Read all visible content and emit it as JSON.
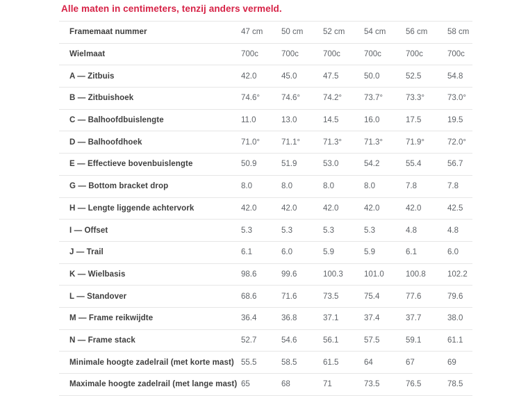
{
  "title": "Alle maten in centimeters, tenzij anders vermeld.",
  "colors": {
    "title_red": "#d62246",
    "label_text": "#3e3e3e",
    "value_text": "#5f6368",
    "row_border": "#e6e6e6"
  },
  "table": {
    "rows": [
      {
        "label": "Framemaat nummer",
        "values": [
          "47 cm",
          "50 cm",
          "52 cm",
          "54 cm",
          "56 cm",
          "58 cm"
        ]
      },
      {
        "label": "Wielmaat",
        "values": [
          "700c",
          "700c",
          "700c",
          "700c",
          "700c",
          "700c"
        ]
      },
      {
        "label": "A — Zitbuis",
        "values": [
          "42.0",
          "45.0",
          "47.5",
          "50.0",
          "52.5",
          "54.8"
        ]
      },
      {
        "label": "B — Zitbuishoek",
        "values": [
          "74.6°",
          "74.6°",
          "74.2°",
          "73.7°",
          "73.3°",
          "73.0°"
        ]
      },
      {
        "label": "C — Balhoofdbuislengte",
        "values": [
          "11.0",
          "13.0",
          "14.5",
          "16.0",
          "17.5",
          "19.5"
        ]
      },
      {
        "label": "D — Balhoofdhoek",
        "values": [
          "71.0°",
          "71.1°",
          "71.3°",
          "71.3°",
          "71.9°",
          "72.0°"
        ]
      },
      {
        "label": "E — Effectieve bovenbuislengte",
        "values": [
          "50.9",
          "51.9",
          "53.0",
          "54.2",
          "55.4",
          "56.7"
        ]
      },
      {
        "label": "G — Bottom bracket drop",
        "values": [
          "8.0",
          "8.0",
          "8.0",
          "8.0",
          "7.8",
          "7.8"
        ]
      },
      {
        "label": "H — Lengte liggende achtervork",
        "values": [
          "42.0",
          "42.0",
          "42.0",
          "42.0",
          "42.0",
          "42.5"
        ]
      },
      {
        "label": "I — Offset",
        "values": [
          "5.3",
          "5.3",
          "5.3",
          "5.3",
          "4.8",
          "4.8"
        ]
      },
      {
        "label": "J — Trail",
        "values": [
          "6.1",
          "6.0",
          "5.9",
          "5.9",
          "6.1",
          "6.0"
        ]
      },
      {
        "label": "K — Wielbasis",
        "values": [
          "98.6",
          "99.6",
          "100.3",
          "101.0",
          "100.8",
          "102.2"
        ]
      },
      {
        "label": "L — Standover",
        "values": [
          "68.6",
          "71.6",
          "73.5",
          "75.4",
          "77.6",
          "79.6"
        ]
      },
      {
        "label": "M — Frame reikwijdte",
        "values": [
          "36.4",
          "36.8",
          "37.1",
          "37.4",
          "37.7",
          "38.0"
        ]
      },
      {
        "label": "N — Frame stack",
        "values": [
          "52.7",
          "54.6",
          "56.1",
          "57.5",
          "59.1",
          "61.1"
        ]
      },
      {
        "label": "Minimale hoogte zadelrail (met korte mast)",
        "values": [
          "55.5",
          "58.5",
          "61.5",
          "64",
          "67",
          "69"
        ]
      },
      {
        "label": "Maximale hoogte zadelrail (met lange mast)",
        "values": [
          "65",
          "68",
          "71",
          "73.5",
          "76.5",
          "78.5"
        ]
      }
    ]
  }
}
